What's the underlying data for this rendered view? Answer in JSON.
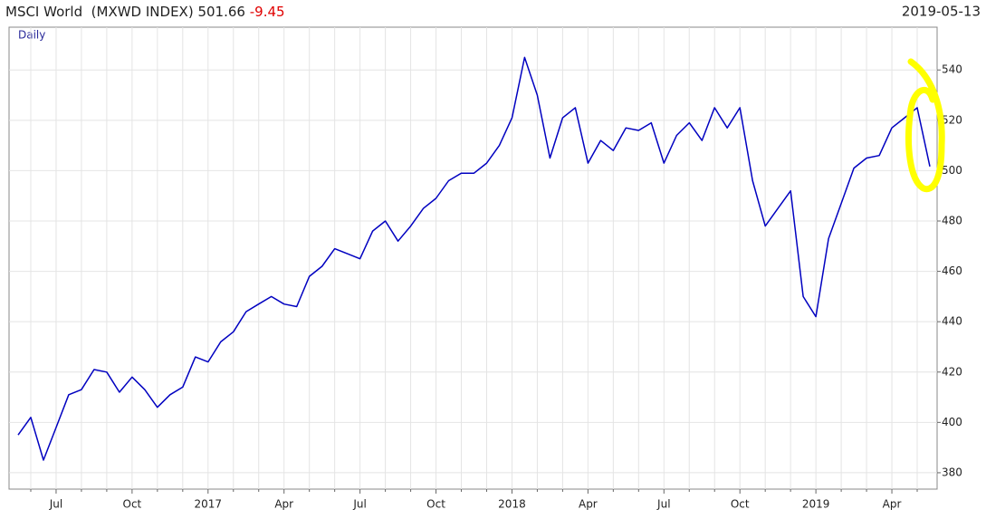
{
  "chart_data": {
    "type": "line",
    "title": "MSCI World  (MXWD INDEX)",
    "last": 501.66,
    "change": -9.45,
    "date": "2019-05-13",
    "period": "Daily",
    "categories": [
      null,
      null,
      null,
      "Jul",
      null,
      null,
      null,
      null,
      null,
      "Oct",
      null,
      null,
      null,
      null,
      null,
      "2017",
      null,
      null,
      null,
      null,
      null,
      "Apr",
      null,
      null,
      null,
      null,
      null,
      "Jul",
      null,
      null,
      null,
      null,
      null,
      "Oct",
      null,
      null,
      null,
      null,
      null,
      "2018",
      null,
      null,
      null,
      null,
      null,
      "Apr",
      null,
      null,
      null,
      null,
      null,
      "Jul",
      null,
      null,
      null,
      null,
      null,
      "Oct",
      null,
      null,
      null,
      null,
      null,
      "2019",
      null,
      null,
      null,
      null,
      null,
      "Apr",
      null,
      null,
      null
    ],
    "series": [
      {
        "name": "MSCI World",
        "color": "#0000c0",
        "values": [
          395,
          402,
          385,
          398,
          411,
          413,
          421,
          420,
          412,
          418,
          413,
          406,
          411,
          414,
          426,
          424,
          432,
          436,
          444,
          447,
          450,
          447,
          446,
          458,
          462,
          469,
          467,
          465,
          476,
          480,
          472,
          478,
          485,
          489,
          496,
          499,
          499,
          503,
          510,
          521,
          545,
          530,
          505,
          521,
          525,
          503,
          512,
          508,
          517,
          516,
          519,
          503,
          514,
          519,
          512,
          525,
          517,
          525,
          496,
          478,
          485,
          492,
          450,
          442,
          473,
          487,
          501,
          505,
          506,
          517,
          521,
          525,
          501.66
        ]
      }
    ],
    "ylim": [
      373.5,
      557
    ],
    "yticks": [
      380,
      400,
      420,
      440,
      460,
      480,
      500,
      520,
      540
    ],
    "grid": true
  }
}
